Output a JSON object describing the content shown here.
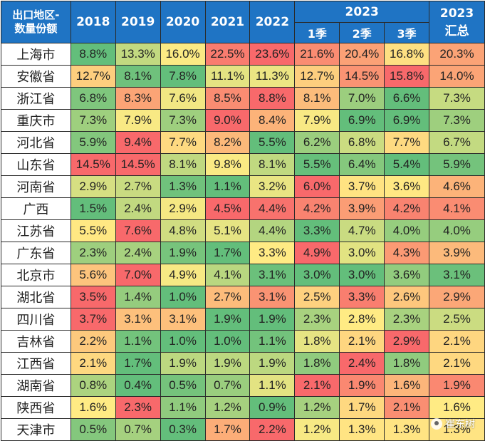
{
  "header": {
    "region_label": [
      "出口地区-",
      "数量份额"
    ],
    "years": [
      "2018",
      "2019",
      "2020",
      "2021",
      "2022"
    ],
    "group_year": "2023",
    "quarters": [
      "1季",
      "2季",
      "3季"
    ],
    "total_label": [
      "2023",
      "汇总"
    ]
  },
  "rows": [
    {
      "region": "上海市",
      "values": [
        "8.8%",
        "13.3%",
        "16.0%",
        "22.5%",
        "23.6%",
        "21.6%",
        "20.4%",
        "16.8%",
        "20.3%"
      ]
    },
    {
      "region": "安徽省",
      "values": [
        "12.7%",
        "8.1%",
        "7.8%",
        "11.1%",
        "11.3%",
        "12.7%",
        "14.5%",
        "15.8%",
        "14.0%"
      ]
    },
    {
      "region": "浙江省",
      "values": [
        "6.8%",
        "8.3%",
        "7.6%",
        "8.5%",
        "8.8%",
        "8.1%",
        "7.0%",
        "6.6%",
        "7.3%"
      ]
    },
    {
      "region": "重庆市",
      "values": [
        "7.3%",
        "7.9%",
        "7.3%",
        "9.0%",
        "8.4%",
        "7.9%",
        "6.9%",
        "6.9%",
        "7.3%"
      ]
    },
    {
      "region": "河北省",
      "values": [
        "5.9%",
        "9.4%",
        "7.7%",
        "8.2%",
        "5.5%",
        "6.2%",
        "6.8%",
        "7.7%",
        "6.7%"
      ]
    },
    {
      "region": "山东省",
      "values": [
        "14.5%",
        "14.5%",
        "8.1%",
        "9.8%",
        "8.1%",
        "5.5%",
        "6.4%",
        "5.4%",
        "5.9%"
      ]
    },
    {
      "region": "河南省",
      "values": [
        "2.9%",
        "2.7%",
        "1.3%",
        "1.1%",
        "3.2%",
        "6.0%",
        "3.7%",
        "3.6%",
        "4.6%"
      ]
    },
    {
      "region": "广西",
      "values": [
        "1.5%",
        "2.4%",
        "2.9%",
        "4.5%",
        "4.4%",
        "4.2%",
        "3.9%",
        "4.2%",
        "4.1%"
      ]
    },
    {
      "region": "江苏省",
      "values": [
        "5.5%",
        "7.6%",
        "4.8%",
        "5.1%",
        "4.4%",
        "3.3%",
        "4.7%",
        "4.0%",
        "4.0%"
      ]
    },
    {
      "region": "广东省",
      "values": [
        "2.3%",
        "2.4%",
        "1.9%",
        "1.7%",
        "3.3%",
        "4.9%",
        "3.0%",
        "4.3%",
        "3.9%"
      ]
    },
    {
      "region": "北京市",
      "values": [
        "5.6%",
        "7.0%",
        "4.9%",
        "4.1%",
        "3.1%",
        "3.0%",
        "3.0%",
        "3.6%",
        "3.1%"
      ]
    },
    {
      "region": "湖北省",
      "values": [
        "3.5%",
        "1.4%",
        "1.0%",
        "2.7%",
        "3.1%",
        "2.5%",
        "3.3%",
        "2.6%",
        "2.9%"
      ]
    },
    {
      "region": "四川省",
      "values": [
        "3.7%",
        "3.1%",
        "3.1%",
        "1.9%",
        "1.9%",
        "2.3%",
        "2.8%",
        "2.3%",
        "2.5%"
      ]
    },
    {
      "region": "吉林省",
      "values": [
        "2.2%",
        "1.1%",
        "1.0%",
        "1.0%",
        "1.1%",
        "1.8%",
        "2.1%",
        "2.9%",
        "2.1%"
      ]
    },
    {
      "region": "江西省",
      "values": [
        "2.1%",
        "1.7%",
        "1.9%",
        "1.9%",
        "1.9%",
        "1.8%",
        "2.4%",
        "1.8%",
        "2.1%"
      ]
    },
    {
      "region": "湖南省",
      "values": [
        "0.8%",
        "0.4%",
        "0.5%",
        "0.7%",
        "1.1%",
        "2.1%",
        "1.9%",
        "1.6%",
        "1.9%"
      ]
    },
    {
      "region": "陕西省",
      "values": [
        "1.6%",
        "2.3%",
        "1.1%",
        "1.2%",
        "0.9%",
        "1.2%",
        "1.7%",
        "2.1%",
        "1.6%"
      ]
    },
    {
      "region": "天津市",
      "values": [
        "0.5%",
        "0.7%",
        "0.3%",
        "1.7%",
        "2.2%",
        "1.2%",
        "1.3%",
        "1.3%",
        "1.3%"
      ]
    }
  ],
  "colors": {
    "header_bg": "#1f74c4",
    "scale_low": "#63be7b",
    "scale_mid": "#ffeb84",
    "scale_high": "#f8696b"
  },
  "watermark": "崔东树"
}
